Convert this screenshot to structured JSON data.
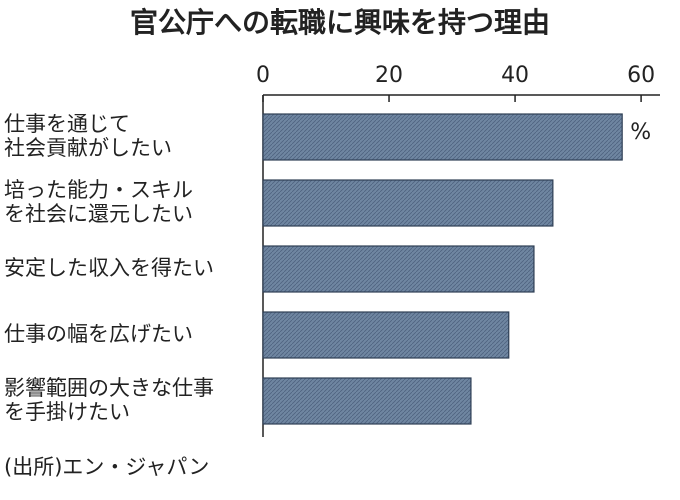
{
  "chart_data": {
    "type": "barh",
    "title": "官公庁への転職に興味を持つ理由",
    "categories": [
      "仕事を通じて\n社会貢献がしたい",
      "培った能力・スキル\nを社会に還元したい",
      "安定した収入を得たい",
      "仕事の幅を広げたい",
      "影響範囲の大きな仕事\nを手掛けたい"
    ],
    "values": [
      57,
      46,
      43,
      39,
      33
    ],
    "color": "#6f86a1",
    "unit": "%",
    "source": "(出所)エン・ジャパン",
    "xlim": [
      0,
      63
    ],
    "xticks": [
      0,
      20,
      40,
      60
    ]
  }
}
